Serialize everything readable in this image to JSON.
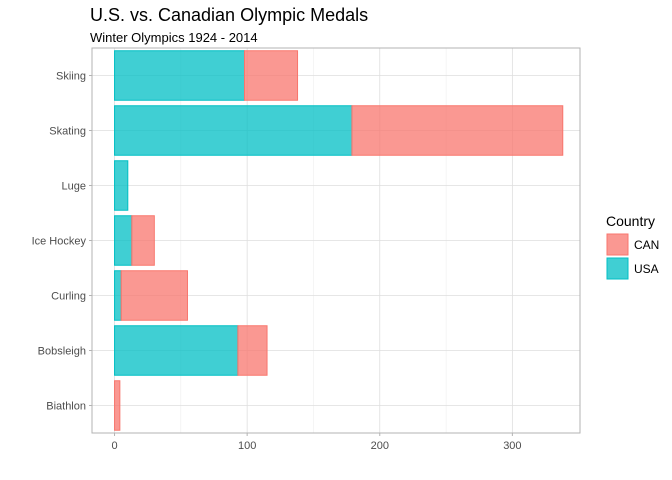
{
  "chart_data": {
    "type": "bar",
    "orientation": "horizontal",
    "stacked": true,
    "title": "U.S. vs. Canadian Olympic Medals",
    "subtitle": "Winter Olympics 1924 - 2014",
    "xlabel": "",
    "ylabel": "",
    "categories": [
      "Skiing",
      "Skating",
      "Luge",
      "Ice Hockey",
      "Curling",
      "Bobsleigh",
      "Biathlon"
    ],
    "series": [
      {
        "name": "USA",
        "color": "#00bfc4",
        "values": [
          98,
          179,
          10,
          13,
          5,
          93,
          0
        ]
      },
      {
        "name": "CAN",
        "color": "#f8766d",
        "values": [
          40,
          159,
          0,
          17,
          50,
          22,
          4
        ]
      }
    ],
    "xlim": [
      -17,
      351
    ],
    "xticks": [
      0,
      100,
      200,
      300
    ],
    "grid": true,
    "legend": {
      "title": "Country",
      "position": "right",
      "entries": [
        "CAN",
        "USA"
      ]
    }
  }
}
